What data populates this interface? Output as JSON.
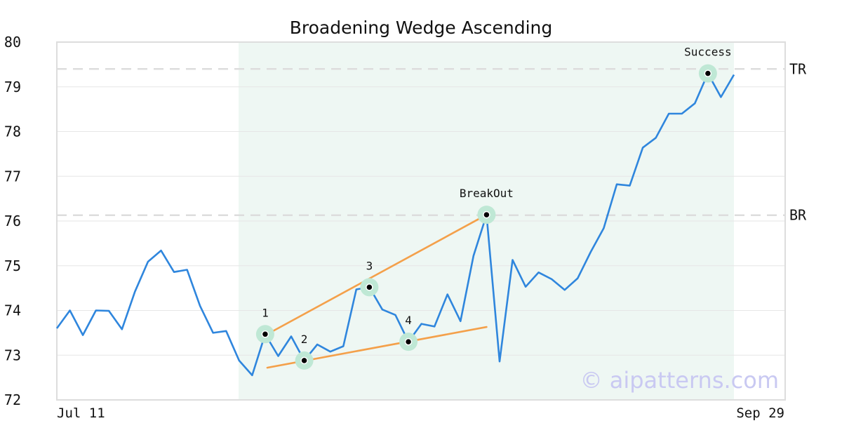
{
  "chart_data": {
    "type": "line",
    "title": "Broadening Wedge Ascending",
    "xlabel": "",
    "ylabel": "",
    "ylim": [
      72,
      80
    ],
    "yticks": [
      72,
      73,
      74,
      75,
      76,
      77,
      78,
      79,
      80
    ],
    "x_tick_labels": [
      "Jul 11",
      "Sep 29"
    ],
    "grid": "horizontal",
    "colors": {
      "price": "#2f86dd",
      "trendline": "#f4a04a",
      "highlight": "#eef7f3",
      "marker_ring": "#bfe8d5",
      "level_line": "#dddddd",
      "watermark": "#c9c9f2"
    },
    "series": [
      {
        "values": [
          73.6,
          74.0,
          73.45,
          74.0,
          73.99,
          73.58,
          74.42,
          75.09,
          75.34,
          74.86,
          74.91,
          74.1,
          73.5,
          73.54,
          72.88,
          72.55,
          73.47,
          72.98,
          73.42,
          72.88,
          73.24,
          73.08,
          73.2,
          74.47,
          74.52,
          74.02,
          73.9,
          73.3,
          73.7,
          73.64,
          74.36,
          73.76,
          75.22,
          76.14,
          72.86,
          75.13,
          74.53,
          74.85,
          74.7,
          74.46,
          74.72,
          75.31,
          75.84,
          76.82,
          76.79,
          77.64,
          77.86,
          78.4,
          78.4,
          78.63,
          79.3,
          78.77,
          79.27
        ]
      }
    ],
    "highlight_range": {
      "start_index": 14,
      "end_index": 52
    },
    "horizontal_levels": [
      {
        "label": "TR",
        "value": 79.4
      },
      {
        "label": "BR",
        "value": 76.13
      }
    ],
    "pattern_points": [
      {
        "label": "1",
        "index": 16,
        "value": 73.47
      },
      {
        "label": "2",
        "index": 19,
        "value": 72.88
      },
      {
        "label": "3",
        "index": 24,
        "value": 74.52
      },
      {
        "label": "4",
        "index": 27,
        "value": 73.3
      },
      {
        "label": "BreakOut",
        "index": 33,
        "value": 76.14
      },
      {
        "label": "Success",
        "index": 50,
        "value": 79.3
      }
    ],
    "trendlines": [
      {
        "from": {
          "index": 16,
          "value": 73.47
        },
        "to": {
          "index": 33,
          "value": 76.14
        }
      },
      {
        "from": {
          "index": 16,
          "value": 72.72
        },
        "to": {
          "index": 33,
          "value": 73.63
        }
      }
    ],
    "watermark": "© aipatterns.com"
  }
}
